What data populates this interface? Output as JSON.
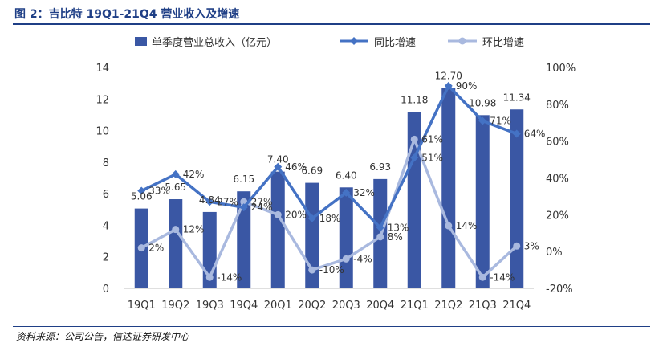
{
  "header": {
    "title": "图 2：吉比特 19Q1-21Q4 营业收入及增速"
  },
  "footer": {
    "source": "资料来源：公司公告，信达证券研发中心"
  },
  "colors": {
    "bar": "#3a57a4",
    "yoy": "#4472c4",
    "qoq": "#a9b9df",
    "title": "#1f3f86"
  },
  "chart_data": {
    "type": "bar+line",
    "categories": [
      "19Q1",
      "19Q2",
      "19Q3",
      "19Q4",
      "20Q1",
      "20Q2",
      "20Q3",
      "20Q4",
      "21Q1",
      "21Q2",
      "21Q3",
      "21Q4"
    ],
    "series": [
      {
        "name": "单季度营业总收入（亿元）",
        "kind": "bar",
        "axis": "left",
        "values": [
          5.06,
          5.65,
          4.84,
          6.15,
          7.4,
          6.69,
          6.4,
          6.93,
          11.18,
          12.7,
          10.98,
          11.34
        ],
        "labels": [
          "5.06",
          "5.65",
          "4.84",
          "6.15",
          "7.40",
          "6.69",
          "6.40",
          "6.93",
          "11.18",
          "12.70",
          "10.98",
          "11.34"
        ]
      },
      {
        "name": "同比增速",
        "kind": "line",
        "axis": "right",
        "values": [
          33,
          42,
          27,
          24,
          46,
          18,
          32,
          13,
          51,
          90,
          71,
          64
        ],
        "labels": [
          "33%",
          "42%",
          "27%",
          "24%",
          "46%",
          "18%",
          "32%",
          "13%",
          "51%",
          "90%",
          "71%",
          "64%"
        ]
      },
      {
        "name": "环比增速",
        "kind": "line",
        "axis": "right",
        "values": [
          2,
          12,
          -14,
          27,
          20,
          -10,
          -4,
          8,
          61,
          14,
          -14,
          3
        ],
        "labels": [
          "2%",
          "12%",
          "-14%",
          "27%",
          "20%",
          "-10%",
          "-4%",
          "8%",
          "61%",
          "14%",
          "-14%",
          "3%"
        ]
      }
    ],
    "left_axis": {
      "min": 0,
      "max": 14,
      "ticks": [
        "0",
        "2",
        "4",
        "6",
        "8",
        "10",
        "12",
        "14"
      ]
    },
    "right_axis": {
      "min": -20,
      "max": 100,
      "ticks": [
        "-20%",
        "0%",
        "20%",
        "40%",
        "60%",
        "80%",
        "100%"
      ]
    },
    "legend_position": "top-center",
    "grid": false
  }
}
